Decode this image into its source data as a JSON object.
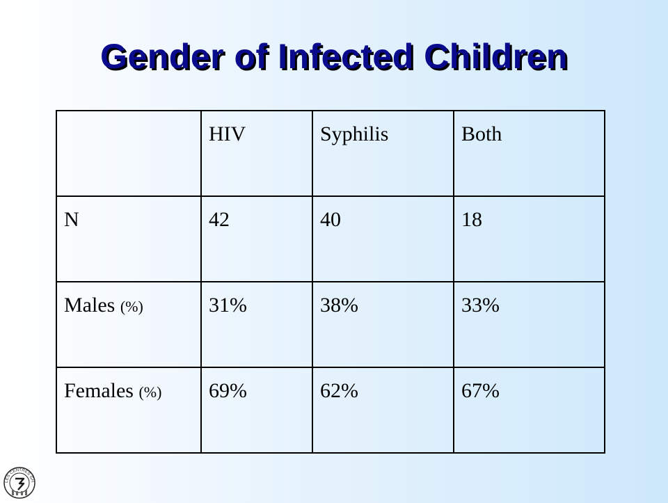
{
  "title": "Gender of Infected Children",
  "chart_data": {
    "type": "table",
    "columns": [
      "",
      "HIV",
      "Syphilis",
      "Both"
    ],
    "rows": [
      {
        "label": "N",
        "unit": "",
        "cells": [
          "42",
          "40",
          "18"
        ]
      },
      {
        "label": "Males",
        "unit": "(%)",
        "cells": [
          "31%",
          "38%",
          "33%"
        ]
      },
      {
        "label": "Females",
        "unit": "(%)",
        "cells": [
          "69%",
          "62%",
          "67%"
        ]
      }
    ]
  },
  "logo": {
    "text": "LES CENTRES GHESKIO",
    "icon": "gheskio-logo-icon"
  },
  "colors": {
    "title": "#0a0a8c",
    "background_left": "#ffffff",
    "background_right": "#cde8fb"
  }
}
